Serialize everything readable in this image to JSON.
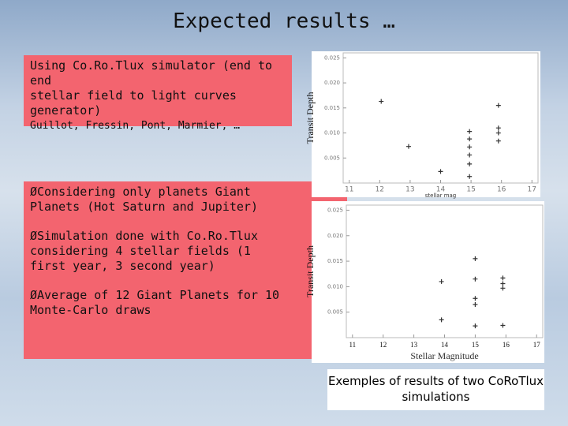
{
  "title": "Expected results …",
  "box1": {
    "lines": [
      "Using Co.Ro.Tlux simulator (end to end",
      "stellar field to light curves generator)"
    ],
    "authors": "Guillot, Fressin, Pont, Marmier, …"
  },
  "box2": {
    "bullets": [
      "ØConsidering only planets Giant Planets (Hot Saturn and Jupiter)",
      "ØSimulation done with Co.Ro.Tlux considering 4 stellar fields (1 first year, 3 second year)",
      "ØAverage of 12 Giant Planets for 10 Monte-Carlo draws"
    ]
  },
  "caption": "Exemples of results of two CoRoTlux simulations",
  "chart_data": [
    {
      "type": "scatter",
      "xlabel": "stellar mag",
      "ylabel": "Transit Depth",
      "color": "#333333",
      "x": [
        12.05,
        12.95,
        14.0,
        14.95,
        14.95,
        14.95,
        14.95,
        14.95,
        14.95,
        15.9,
        15.9,
        15.9,
        15.9
      ],
      "values": [
        0.0163,
        0.0073,
        0.0023,
        0.0103,
        0.0088,
        0.0072,
        0.0056,
        0.0038,
        0.0013,
        0.0155,
        0.011,
        0.01,
        0.0084
      ],
      "xlim": [
        10.8,
        17.2
      ],
      "ylim": [
        0,
        0.026
      ],
      "xticks": [
        11,
        12,
        13,
        14,
        15,
        16,
        17
      ],
      "yticks": [
        0.025,
        {
          "value": 0.02,
          "label": "0.020"
        },
        0.015,
        {
          "value": 0.01,
          "label": "0.010"
        },
        0.005
      ]
    },
    {
      "type": "scatter",
      "xlabel": "Stellar Magnitude",
      "ylabel": "Transit Depth",
      "color": "#333333",
      "x": [
        15.0,
        13.9,
        15.0,
        15.9,
        15.9,
        15.9,
        15.0,
        15.0,
        13.9,
        15.0,
        15.9
      ],
      "values": [
        0.0155,
        0.011,
        0.0115,
        0.0117,
        0.0106,
        0.0097,
        0.0077,
        0.0065,
        0.0035,
        0.0023,
        0.0024
      ],
      "xlim": [
        10.8,
        17.2
      ],
      "ylim": [
        0,
        0.026
      ],
      "xticks": [
        11,
        12,
        13,
        14,
        15,
        16,
        17
      ],
      "yticks": [
        0.025,
        {
          "value": 0.02,
          "label": "0.020"
        },
        0.015,
        {
          "value": 0.01,
          "label": "0.010"
        },
        0.005
      ]
    }
  ]
}
